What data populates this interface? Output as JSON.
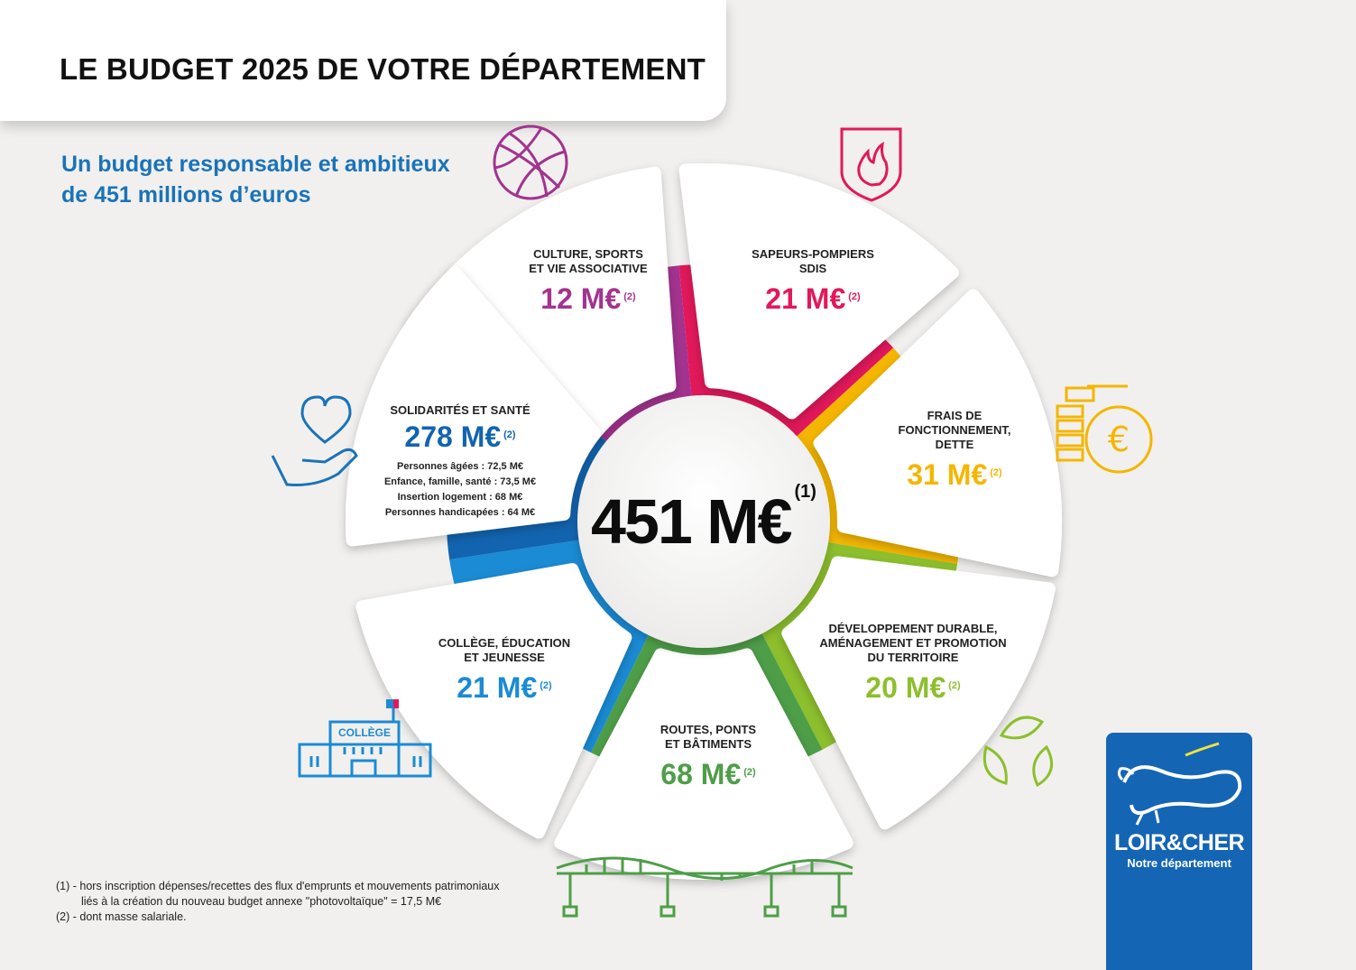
{
  "header": {
    "title": "LE BUDGET 2025 DE VOTRE DÉPARTEMENT",
    "subtitle_line1": "Un budget responsable et ambitieux",
    "subtitle_line2": "de 451 millions d’euros"
  },
  "chart_data": {
    "type": "pie",
    "title": "LE BUDGET 2025 DE VOTRE DÉPARTEMENT",
    "unit": "M€",
    "total": 451,
    "total_label": "451 M€",
    "total_note": "(1)",
    "segments": [
      {
        "key": "culture",
        "label_lines": [
          "CULTURE, SPORTS",
          "ET VIE ASSOCIATIVE"
        ],
        "value": 12,
        "value_label": "12 M€",
        "note": "(2)",
        "color": "#a3338f"
      },
      {
        "key": "sdis",
        "label_lines": [
          "SAPEURS-POMPIERS",
          "SDIS"
        ],
        "value": 21,
        "value_label": "21 M€",
        "note": "(2)",
        "color": "#e2185a"
      },
      {
        "key": "frais",
        "label_lines": [
          "FRAIS DE",
          "FONCTIONNEMENT,",
          "DETTE"
        ],
        "value": 31,
        "value_label": "31 M€",
        "note": "(2)",
        "color": "#f4b600"
      },
      {
        "key": "dev",
        "label_lines": [
          "DÉVELOPPEMENT DURABLE,",
          "AMÉNAGEMENT ET PROMOTION",
          "DU TERRITOIRE"
        ],
        "value": 20,
        "value_label": "20 M€",
        "note": "(2)",
        "color": "#8dbf2d"
      },
      {
        "key": "routes",
        "label_lines": [
          "ROUTES, PONTS",
          "ET BÂTIMENTS"
        ],
        "value": 68,
        "value_label": "68 M€",
        "note": "(2)",
        "color": "#4e9e48"
      },
      {
        "key": "college",
        "label_lines": [
          "COLLÈGE, ÉDUCATION",
          "ET JEUNESSE"
        ],
        "value": 21,
        "value_label": "21 M€",
        "note": "(2)",
        "color": "#1a8bd4"
      },
      {
        "key": "solidarite",
        "label_lines": [
          "SOLIDARITÉS ET SANTÉ"
        ],
        "value": 278,
        "value_label": "278 M€",
        "note": "(2)",
        "color": "#1264b0",
        "details": [
          "Personnes âgées : 72,5 M€",
          "Enfance, famille, santé : 73,5 M€",
          "Insertion logement : 68 M€",
          "Personnes handicapées : 64 M€"
        ]
      }
    ]
  },
  "icons": {
    "college_sign": "COLLÈGE"
  },
  "footnotes": {
    "note1_line1": "(1) - hors inscription dépenses/recettes des flux d'emprunts et mouvements patrimoniaux",
    "note1_line2": "liés à la création du nouveau budget annexe \"photovoltaïque\"  = 17,5 M€",
    "note2": "(2) - dont masse salariale."
  },
  "logo": {
    "brand": "LOIR&CHER",
    "tagline": "Notre département"
  }
}
